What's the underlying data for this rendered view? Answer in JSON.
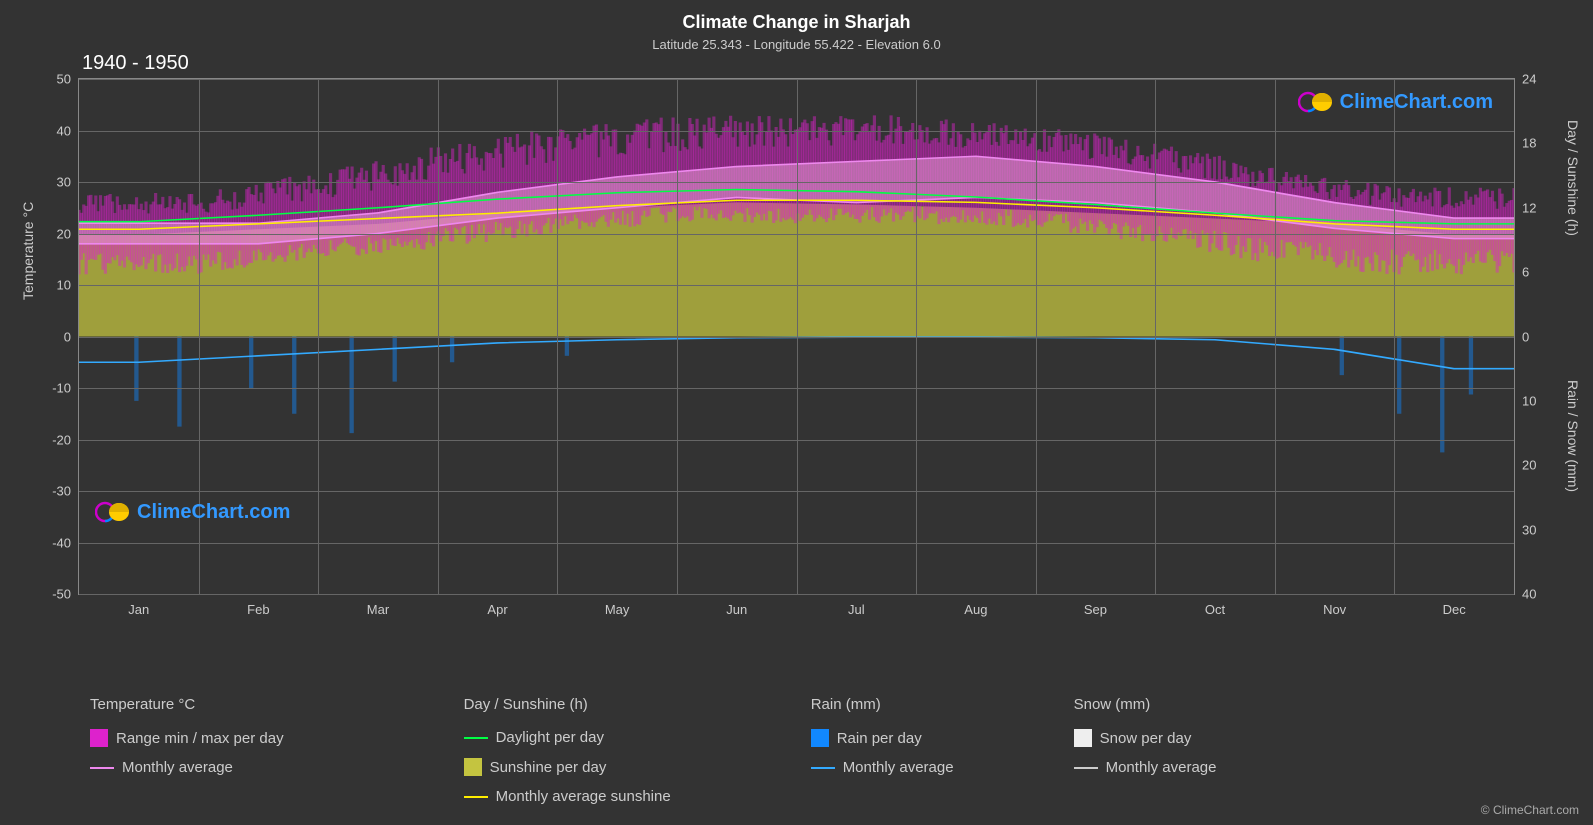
{
  "title": "Climate Change in Sharjah",
  "subtitle": "Latitude 25.343 - Longitude 55.422 - Elevation 6.0",
  "period": "1940 - 1950",
  "copyright": "© ClimeChart.com",
  "watermark_text": "ClimeChart.com",
  "watermark_color": "#3399ff",
  "background_color": "#333333",
  "grid_color": "#666666",
  "text_color": "#cccccc",
  "axes": {
    "left_label": "Temperature °C",
    "right_label_1": "Day / Sunshine (h)",
    "right_label_2": "Rain / Snow (mm)",
    "left_ticks": [
      50,
      40,
      30,
      20,
      10,
      0,
      -10,
      -20,
      -30,
      -40,
      -50
    ],
    "left_min": -50,
    "left_max": 50,
    "right_top_ticks": [
      24,
      18,
      12,
      6,
      0
    ],
    "right_top_min": 0,
    "right_top_max": 24,
    "right_bottom_ticks": [
      0,
      10,
      20,
      30,
      40
    ],
    "right_bottom_min": 40,
    "right_bottom_max": 0,
    "months": [
      "Jan",
      "Feb",
      "Mar",
      "Apr",
      "May",
      "Jun",
      "Jul",
      "Aug",
      "Sep",
      "Oct",
      "Nov",
      "Dec"
    ]
  },
  "colors": {
    "temp_range": "#dd22cc",
    "temp_range_inner": "#e69ad4",
    "temp_avg_line": "#ee88ee",
    "daylight_line": "#00ff44",
    "sunshine_fill": "#c4c440",
    "sunshine_avg_line": "#ffee00",
    "rain_fill": "#1188ff",
    "rain_avg_line": "#33aaff",
    "snow_fill": "#eeeeee",
    "snow_avg_line": "#cccccc"
  },
  "series": {
    "temp_max_monthly": [
      22,
      22,
      24,
      28,
      31,
      33,
      34,
      35,
      33,
      30,
      26,
      23
    ],
    "temp_min_monthly": [
      18,
      18,
      20,
      23,
      25,
      27,
      26,
      27,
      26,
      24,
      21,
      19
    ],
    "temp_max_envelope": [
      28,
      28,
      32,
      37,
      41,
      43,
      43,
      43,
      41,
      38,
      33,
      29
    ],
    "temp_min_envelope": [
      12,
      12,
      15,
      17,
      20,
      22,
      22,
      22,
      21,
      18,
      14,
      12
    ],
    "daylight": [
      10.7,
      11.3,
      12.0,
      12.8,
      13.4,
      13.7,
      13.5,
      13.0,
      12.3,
      11.5,
      10.8,
      10.5
    ],
    "sunshine": [
      9.5,
      10.0,
      10.5,
      11.5,
      12.0,
      12.5,
      12.3,
      12.0,
      11.5,
      11.0,
      10.5,
      9.5
    ],
    "sunshine_avg": [
      10.0,
      10.5,
      11.0,
      11.5,
      12.2,
      12.7,
      12.7,
      12.5,
      12.0,
      11.3,
      10.5,
      10.0
    ],
    "rain_avg": [
      4,
      3,
      2,
      1,
      0.5,
      0.2,
      0.1,
      0.1,
      0.2,
      0.5,
      2,
      5
    ],
    "rain_spikes": [
      {
        "x": 0.04,
        "v": 10
      },
      {
        "x": 0.07,
        "v": 14
      },
      {
        "x": 0.12,
        "v": 8
      },
      {
        "x": 0.15,
        "v": 12
      },
      {
        "x": 0.19,
        "v": 15
      },
      {
        "x": 0.22,
        "v": 7
      },
      {
        "x": 0.26,
        "v": 4
      },
      {
        "x": 0.34,
        "v": 3
      },
      {
        "x": 0.88,
        "v": 6
      },
      {
        "x": 0.92,
        "v": 12
      },
      {
        "x": 0.95,
        "v": 18
      },
      {
        "x": 0.97,
        "v": 9
      }
    ]
  },
  "legend": {
    "temp_heading": "Temperature °C",
    "temp_range_label": "Range min / max per day",
    "temp_avg_label": "Monthly average",
    "day_heading": "Day / Sunshine (h)",
    "daylight_label": "Daylight per day",
    "sunshine_label": "Sunshine per day",
    "sunshine_avg_label": "Monthly average sunshine",
    "rain_heading": "Rain (mm)",
    "rain_label": "Rain per day",
    "rain_avg_label": "Monthly average",
    "snow_heading": "Snow (mm)",
    "snow_label": "Snow per day",
    "snow_avg_label": "Monthly average"
  }
}
